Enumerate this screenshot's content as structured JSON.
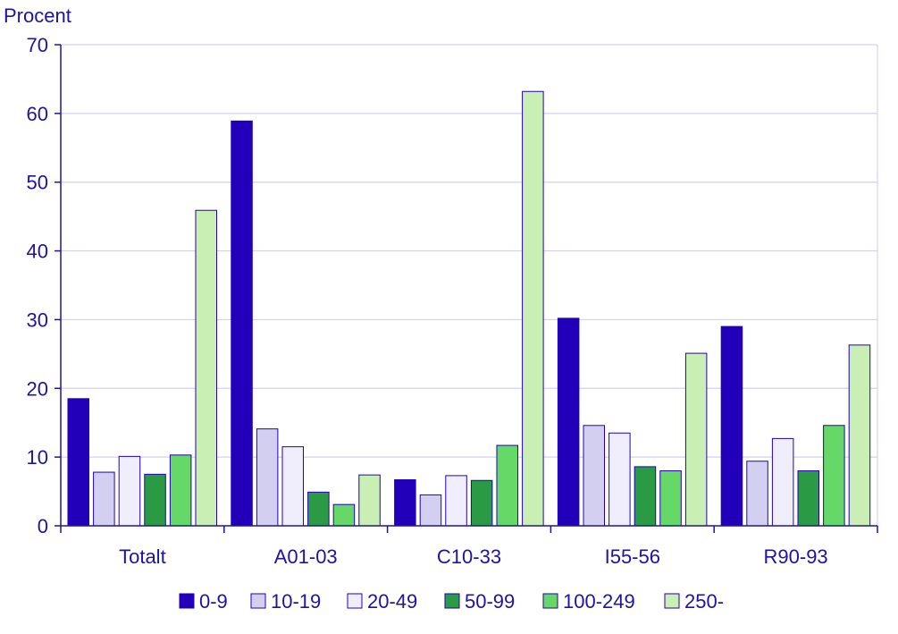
{
  "chart_data": {
    "type": "bar",
    "ylabel": "Procent",
    "ylim": [
      0,
      70
    ],
    "yticks": [
      0,
      10,
      20,
      30,
      40,
      50,
      60,
      70
    ],
    "grid": true,
    "legend_position": "bottom",
    "categories": [
      "Totalt",
      "A01-03",
      "C10-33",
      "I55-56",
      "R90-93"
    ],
    "series": [
      {
        "name": "0-9",
        "color": "#2200b9",
        "values": [
          18.5,
          58.9,
          6.7,
          30.2,
          29.0
        ]
      },
      {
        "name": "10-19",
        "color": "#d3cff0",
        "values": [
          7.8,
          14.1,
          4.5,
          14.6,
          9.4
        ]
      },
      {
        "name": "20-49",
        "color": "#f0eefc",
        "values": [
          10.1,
          11.5,
          7.3,
          13.5,
          12.7
        ]
      },
      {
        "name": "50-99",
        "color": "#2b9a45",
        "values": [
          7.5,
          4.9,
          6.6,
          8.6,
          8.0
        ]
      },
      {
        "name": "100-249",
        "color": "#66d868",
        "values": [
          10.3,
          3.1,
          11.7,
          8.0,
          14.6
        ]
      },
      {
        "name": "250-",
        "color": "#c9efb4",
        "values": [
          45.9,
          7.4,
          63.2,
          25.1,
          26.3
        ]
      }
    ]
  }
}
